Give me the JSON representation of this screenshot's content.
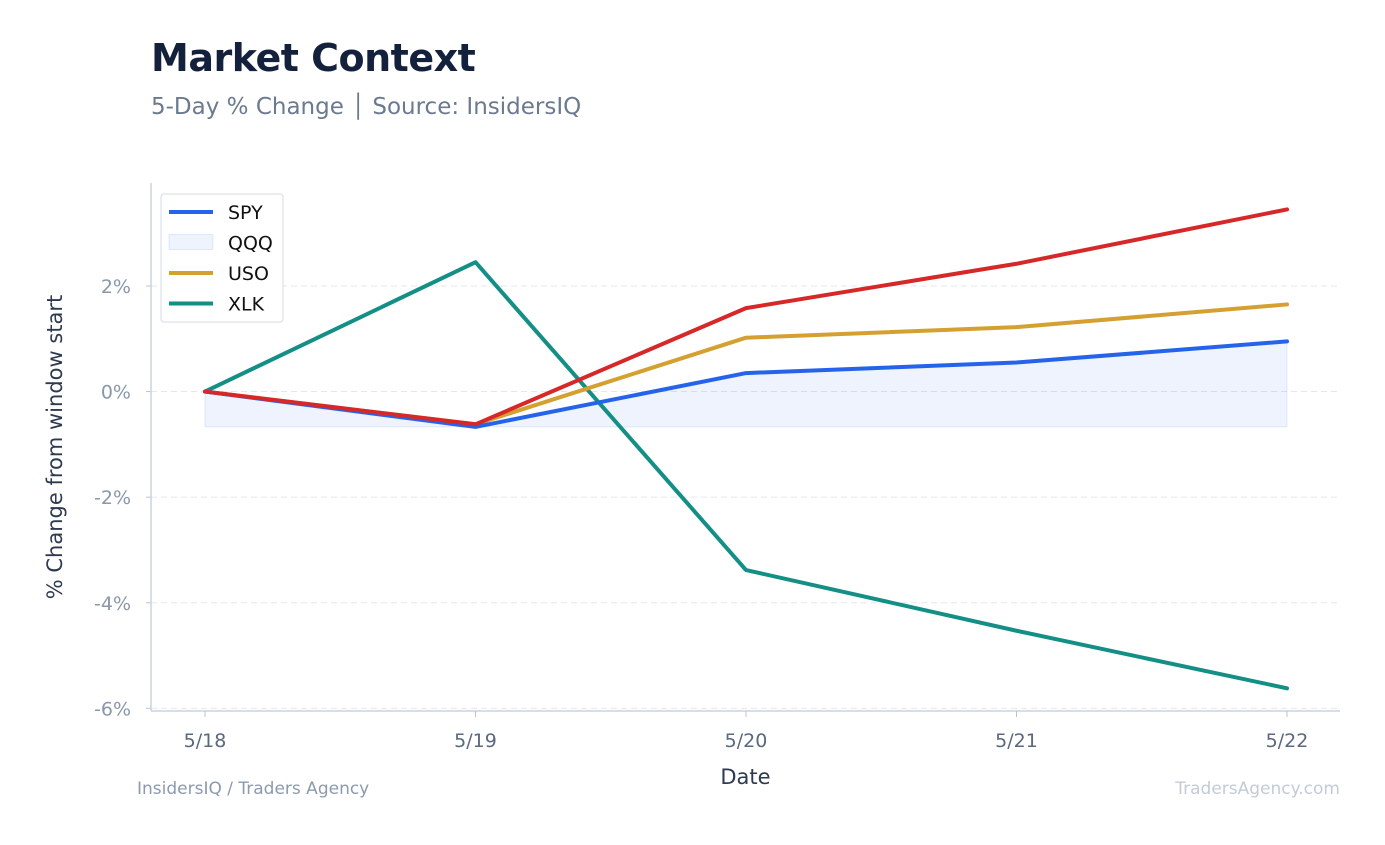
{
  "header": {
    "title": "Market Context",
    "subtitle": "5-Day % Change │ Source: InsidersIQ"
  },
  "footer": {
    "left": "InsidersIQ / Traders Agency",
    "right": "TradersAgency.com"
  },
  "chart_data": {
    "type": "line",
    "xlabel": "Date",
    "ylabel": "% Change from window start",
    "categories": [
      "5/18",
      "5/19",
      "5/20",
      "5/21",
      "5/22"
    ],
    "ylim": [
      -6.05,
      3.95
    ],
    "yticks": [
      2,
      0,
      -2,
      -4,
      -6
    ],
    "ytick_labels": [
      "2%",
      "0%",
      "-2%",
      "-4%",
      "-6%"
    ],
    "grid": true,
    "legend_position": "top-left",
    "band": {
      "name": "QQQ",
      "color": "#2563eb",
      "floor": -0.67,
      "upper": [
        0.0,
        -0.67,
        0.35,
        0.55,
        0.95
      ]
    },
    "series": [
      {
        "name": "SPY",
        "color": "#2563eb",
        "values": [
          0.0,
          -0.67,
          0.35,
          0.55,
          0.95
        ]
      },
      {
        "name": "USO",
        "color": "#d4a030",
        "values": [
          0.0,
          -0.62,
          1.02,
          1.22,
          1.65
        ]
      },
      {
        "name": "XLK",
        "color": "#138f86",
        "values": [
          0.0,
          2.45,
          -3.38,
          -4.53,
          -5.62
        ]
      },
      {
        "name": "",
        "color": "#d62828",
        "values": [
          0.0,
          -0.62,
          1.58,
          2.42,
          3.45
        ]
      }
    ]
  }
}
